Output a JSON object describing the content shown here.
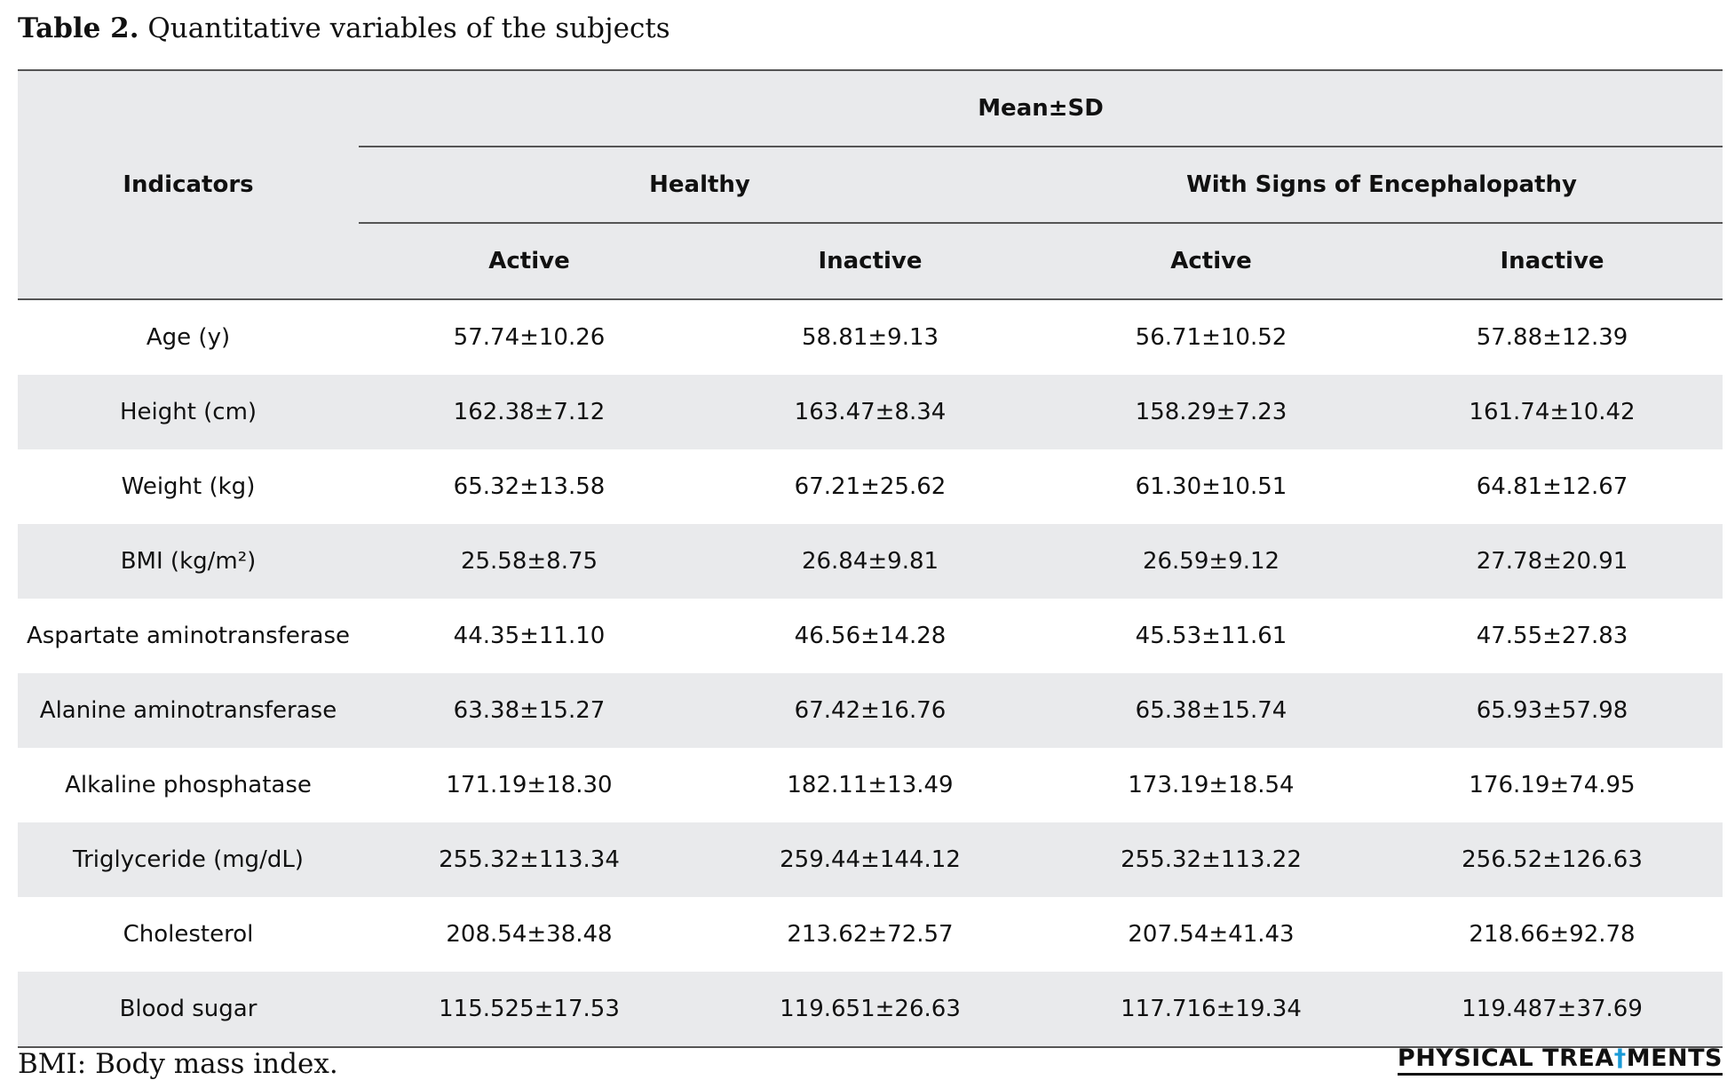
{
  "caption": {
    "label": "Table 2.",
    "text": "Quantitative variables of the subjects"
  },
  "header": {
    "indicators": "Indicators",
    "group": "Mean±SD",
    "healthy": "Healthy",
    "encephalopathy": "With Signs of Encephalopathy",
    "active": "Active",
    "inactive": "Inactive"
  },
  "rows": [
    {
      "label": "Age (y)",
      "values": [
        "57.74±10.26",
        "58.81±9.13",
        "56.71±10.52",
        "57.88±12.39"
      ]
    },
    {
      "label": "Height (cm)",
      "values": [
        "162.38±7.12",
        "163.47±8.34",
        "158.29±7.23",
        "161.74±10.42"
      ]
    },
    {
      "label": "Weight (kg)",
      "values": [
        "65.32±13.58",
        "67.21±25.62",
        "61.30±10.51",
        "64.81±12.67"
      ]
    },
    {
      "label": "BMI (kg/m²)",
      "values": [
        "25.58±8.75",
        "26.84±9.81",
        "26.59±9.12",
        "27.78±20.91"
      ]
    },
    {
      "label": "Aspartate aminotransferase",
      "values": [
        "44.35±11.10",
        "46.56±14.28",
        "45.53±11.61",
        "47.55±27.83"
      ]
    },
    {
      "label": "Alanine aminotransferase",
      "values": [
        "63.38±15.27",
        "67.42±16.76",
        "65.38±15.74",
        "65.93±57.98"
      ]
    },
    {
      "label": "Alkaline phosphatase",
      "values": [
        "171.19±18.30",
        "182.11±13.49",
        "173.19±18.54",
        "176.19±74.95"
      ]
    },
    {
      "label": "Triglyceride (mg/dL)",
      "values": [
        "255.32±113.34",
        "259.44±144.12",
        "255.32±113.22",
        "256.52±126.63"
      ]
    },
    {
      "label": "Cholesterol",
      "values": [
        "208.54±38.48",
        "213.62±72.57",
        "207.54±41.43",
        "218.66±92.78"
      ]
    },
    {
      "label": "Blood sugar",
      "values": [
        "115.525±17.53",
        "119.651±26.63",
        "117.716±19.34",
        "119.487±37.69"
      ]
    }
  ],
  "footnote": "BMI: Body mass index.",
  "logo": {
    "part1": "PHYSICAL TREA",
    "mark": "†",
    "part2": "MENTS"
  },
  "colors": {
    "shade": "#e9eaec",
    "rule": "#555555",
    "logo_accent": "#1a9ad6"
  }
}
